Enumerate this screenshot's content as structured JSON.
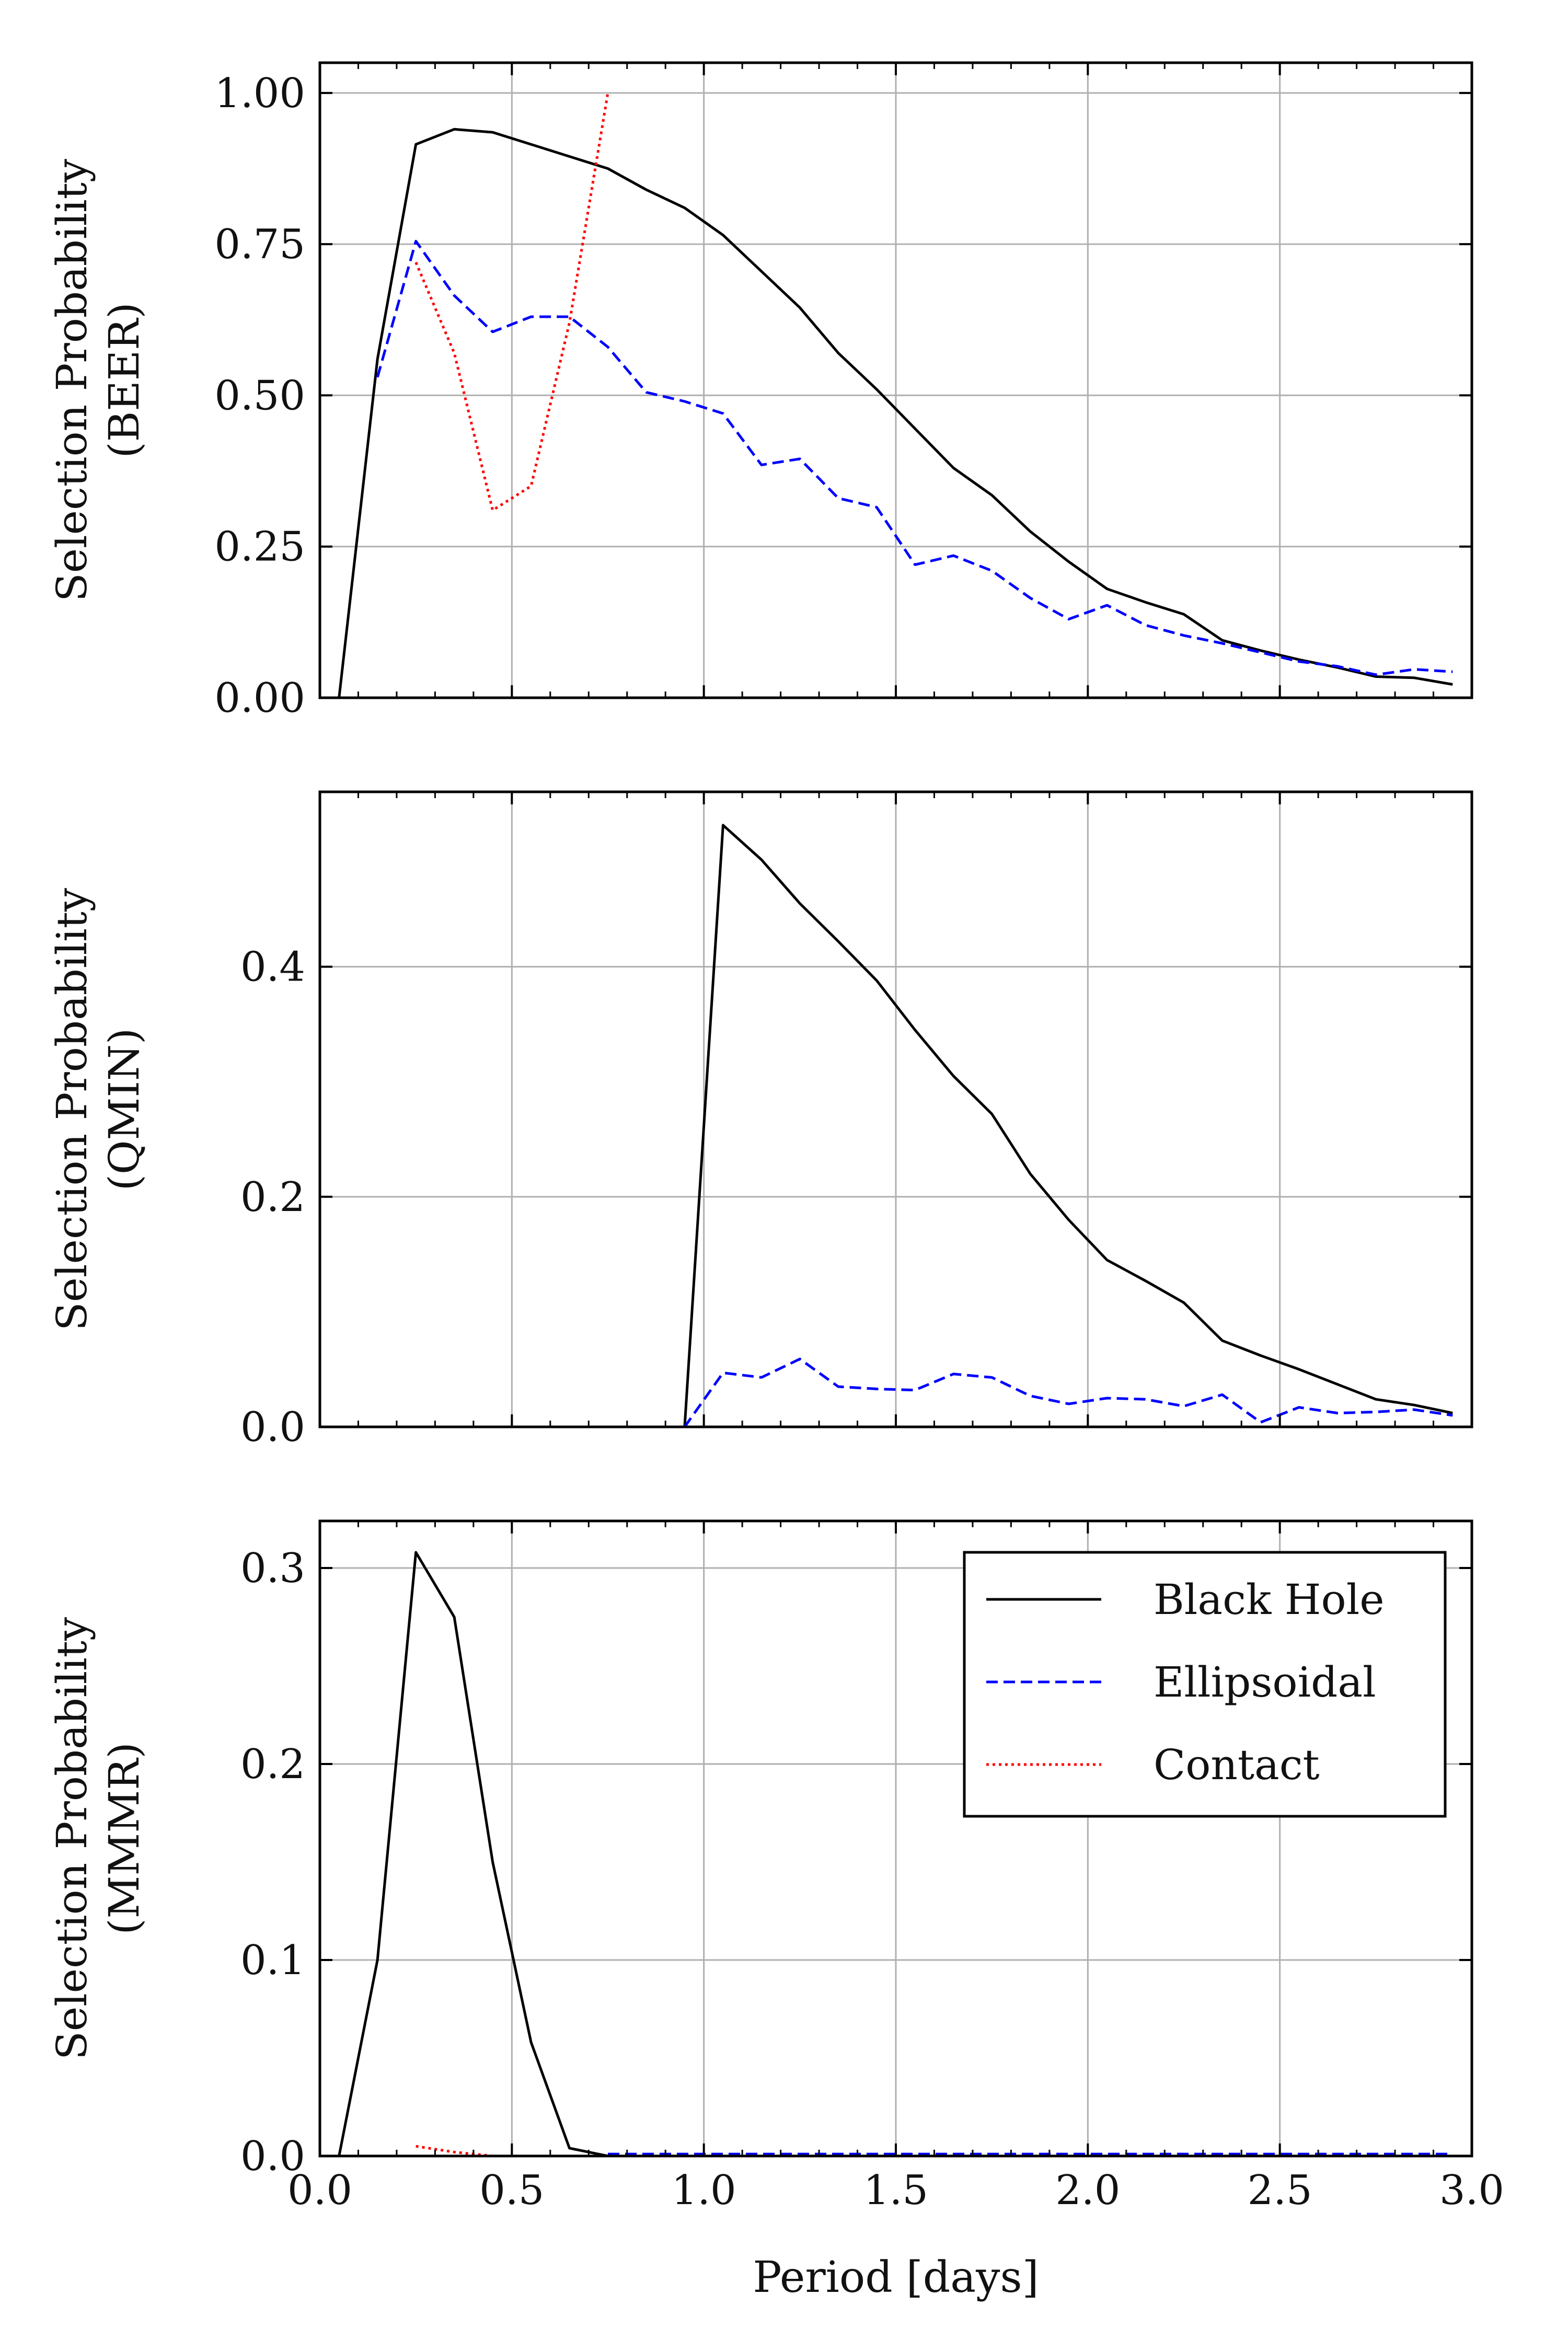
{
  "chart_data": [
    {
      "type": "line",
      "ylabel": [
        "Selection Probability",
        "(BEER)"
      ],
      "xlim": [
        0.0,
        3.0
      ],
      "ylim": [
        0.0,
        1.05
      ],
      "xticks": [
        0.0,
        0.5,
        1.0,
        1.5,
        2.0,
        2.5,
        3.0
      ],
      "yticks": [
        0.0,
        0.25,
        0.5,
        0.75,
        1.0
      ],
      "ytick_labels": [
        "0.00",
        "0.25",
        "0.50",
        "0.75",
        "1.00"
      ],
      "show_xtick_labels": false,
      "grid": true,
      "series": [
        {
          "name": "Black Hole",
          "x": [
            0.05,
            0.15,
            0.25,
            0.35,
            0.45,
            0.55,
            0.65,
            0.75,
            0.85,
            0.95,
            1.05,
            1.15,
            1.25,
            1.35,
            1.45,
            1.55,
            1.65,
            1.75,
            1.85,
            1.95,
            2.05,
            2.15,
            2.25,
            2.35,
            2.45,
            2.55,
            2.65,
            2.75,
            2.85,
            2.95
          ],
          "y": [
            0.0,
            0.56,
            0.915,
            0.94,
            0.935,
            0.915,
            0.895,
            0.875,
            0.84,
            0.81,
            0.765,
            0.705,
            0.645,
            0.57,
            0.51,
            0.445,
            0.38,
            0.335,
            0.275,
            0.225,
            0.18,
            0.158,
            0.138,
            0.095,
            0.078,
            0.063,
            0.05,
            0.035,
            0.033,
            0.022
          ]
        },
        {
          "name": "Ellipsoidal",
          "x": [
            0.15,
            0.25,
            0.35,
            0.45,
            0.55,
            0.65,
            0.75,
            0.85,
            0.95,
            1.05,
            1.15,
            1.25,
            1.35,
            1.45,
            1.55,
            1.65,
            1.75,
            1.85,
            1.95,
            2.05,
            2.15,
            2.25,
            2.35,
            2.45,
            2.55,
            2.65,
            2.75,
            2.85,
            2.95
          ],
          "y": [
            0.53,
            0.755,
            0.665,
            0.605,
            0.63,
            0.63,
            0.58,
            0.505,
            0.49,
            0.47,
            0.385,
            0.395,
            0.33,
            0.315,
            0.22,
            0.235,
            0.21,
            0.165,
            0.13,
            0.153,
            0.12,
            0.103,
            0.09,
            0.075,
            0.06,
            0.052,
            0.038,
            0.047,
            0.043
          ]
        },
        {
          "name": "Contact",
          "x": [
            0.25,
            0.35,
            0.45,
            0.55,
            0.65,
            0.75
          ],
          "y": [
            0.72,
            0.57,
            0.31,
            0.35,
            0.62,
            1.0
          ]
        }
      ]
    },
    {
      "type": "line",
      "ylabel": [
        "Selection Probability",
        "(QMIN)"
      ],
      "xlim": [
        0.0,
        3.0
      ],
      "ylim": [
        0.0,
        0.552
      ],
      "xticks": [
        0.0,
        0.5,
        1.0,
        1.5,
        2.0,
        2.5,
        3.0
      ],
      "yticks": [
        0.0,
        0.2,
        0.4
      ],
      "ytick_labels": [
        "0.0",
        "0.2",
        "0.4"
      ],
      "show_xtick_labels": false,
      "grid": true,
      "series": [
        {
          "name": "Black Hole",
          "x": [
            0.05,
            0.15,
            0.25,
            0.35,
            0.45,
            0.55,
            0.65,
            0.75,
            0.85,
            0.95,
            1.05,
            1.15,
            1.25,
            1.35,
            1.45,
            1.55,
            1.65,
            1.75,
            1.85,
            1.95,
            2.05,
            2.15,
            2.25,
            2.35,
            2.45,
            2.55,
            2.65,
            2.75,
            2.85,
            2.95
          ],
          "y": [
            0.0,
            0.0,
            0.0,
            0.0,
            0.0,
            0.0,
            0.0,
            0.0,
            0.0,
            0.0,
            0.523,
            0.493,
            0.455,
            0.422,
            0.388,
            0.345,
            0.305,
            0.272,
            0.22,
            0.18,
            0.145,
            0.127,
            0.108,
            0.075,
            0.062,
            0.05,
            0.037,
            0.024,
            0.019,
            0.012
          ]
        },
        {
          "name": "Ellipsoidal",
          "x": [
            0.05,
            0.15,
            0.25,
            0.35,
            0.45,
            0.55,
            0.65,
            0.75,
            0.85,
            0.95,
            1.05,
            1.15,
            1.25,
            1.35,
            1.45,
            1.55,
            1.65,
            1.75,
            1.85,
            1.95,
            2.05,
            2.15,
            2.25,
            2.35,
            2.45,
            2.55,
            2.65,
            2.75,
            2.85,
            2.95
          ],
          "y": [
            0.0,
            0.0,
            0.0,
            0.0,
            0.0,
            0.0,
            0.0,
            0.0,
            0.0,
            0.0,
            0.047,
            0.043,
            0.059,
            0.035,
            0.033,
            0.032,
            0.046,
            0.043,
            0.027,
            0.02,
            0.025,
            0.024,
            0.018,
            0.028,
            0.004,
            0.017,
            0.012,
            0.013,
            0.015,
            0.01
          ]
        }
      ]
    },
    {
      "type": "line",
      "ylabel": [
        "Selection Probability",
        "(MMMR)"
      ],
      "xlabel": "Period [days]",
      "xlim": [
        0.0,
        3.0
      ],
      "ylim": [
        0.0,
        0.324
      ],
      "xticks": [
        0.0,
        0.5,
        1.0,
        1.5,
        2.0,
        2.5,
        3.0
      ],
      "xtick_labels": [
        "0.0",
        "0.5",
        "1.0",
        "1.5",
        "2.0",
        "2.5",
        "3.0"
      ],
      "yticks": [
        0.0,
        0.1,
        0.2,
        0.3
      ],
      "ytick_labels": [
        "0.0",
        "0.1",
        "0.2",
        "0.3"
      ],
      "show_xtick_labels": true,
      "grid": true,
      "legend": {
        "position": "top-right",
        "entries": [
          "Black Hole",
          "Ellipsoidal",
          "Contact"
        ]
      },
      "series": [
        {
          "name": "Black Hole",
          "x": [
            0.05,
            0.15,
            0.25,
            0.35,
            0.45,
            0.55,
            0.65,
            0.75,
            0.85,
            0.95,
            1.05,
            1.15,
            1.25,
            1.35,
            1.45,
            1.55,
            1.65,
            1.75,
            1.85,
            1.95,
            2.05,
            2.15,
            2.25,
            2.35,
            2.45,
            2.55,
            2.65,
            2.75,
            2.85,
            2.95
          ],
          "y": [
            0.0,
            0.1,
            0.308,
            0.275,
            0.15,
            0.058,
            0.004,
            0.0,
            0.0,
            0.0,
            0.0,
            0.0,
            0.0,
            0.0,
            0.0,
            0.0,
            0.0,
            0.0,
            0.0,
            0.0,
            0.0,
            0.0,
            0.0,
            0.0,
            0.0,
            0.0,
            0.0,
            0.0,
            0.0,
            0.0
          ]
        },
        {
          "name": "Ellipsoidal",
          "x": [
            0.75,
            0.85,
            0.95,
            1.05,
            1.15,
            1.25,
            1.35,
            1.45,
            1.55,
            1.65,
            1.75,
            1.85,
            1.95,
            2.05,
            2.15,
            2.25,
            2.35,
            2.45,
            2.55,
            2.65,
            2.75,
            2.85,
            2.95
          ],
          "y": [
            0.001,
            0.001,
            0.001,
            0.001,
            0.001,
            0.001,
            0.001,
            0.001,
            0.001,
            0.001,
            0.001,
            0.001,
            0.001,
            0.001,
            0.001,
            0.001,
            0.001,
            0.001,
            0.001,
            0.001,
            0.001,
            0.001,
            0.001
          ]
        },
        {
          "name": "Contact",
          "x": [
            0.25,
            0.35,
            0.45
          ],
          "y": [
            0.005,
            0.002,
            0.0
          ]
        }
      ]
    }
  ],
  "style": {
    "series_colors": {
      "Black Hole": "#000000",
      "Ellipsoidal": "#0000ff",
      "Contact": "#ff0000"
    },
    "series_dash": {
      "Black Hole": "solid",
      "Ellipsoidal": "dashed",
      "Contact": "dotted"
    },
    "grid_color": "#b0b0b0",
    "axis_color": "#000000"
  }
}
